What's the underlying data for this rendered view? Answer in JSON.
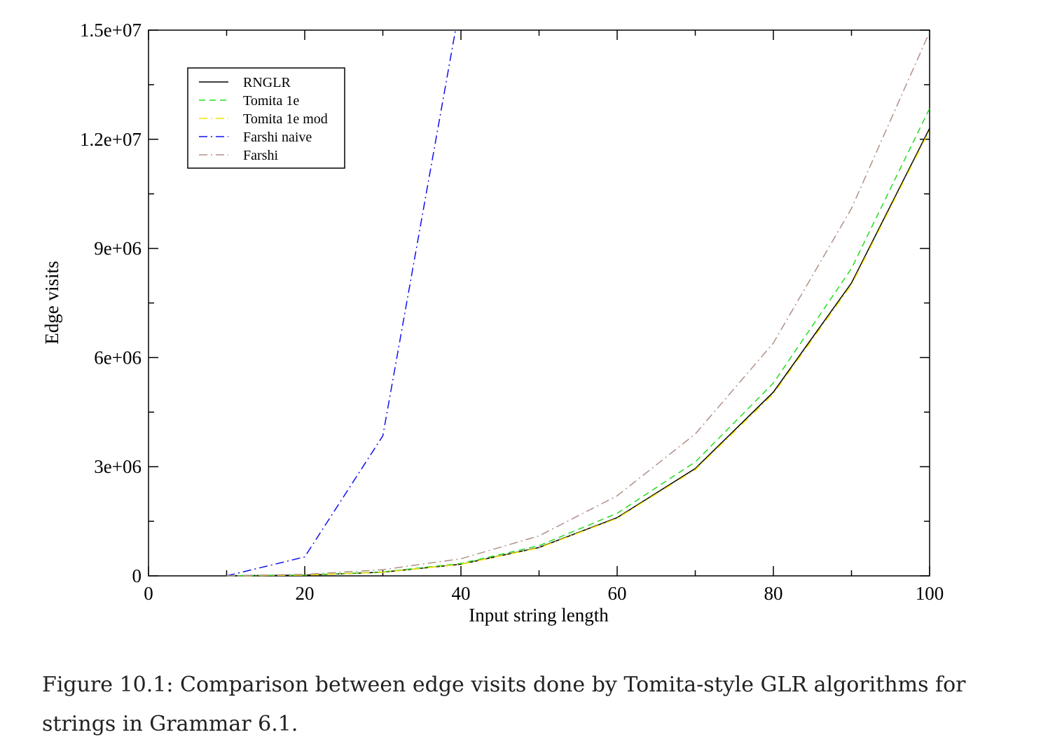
{
  "chart_data": {
    "type": "line",
    "xlabel": "Input string length",
    "ylabel": "Edge visits",
    "xlim": [
      0,
      100
    ],
    "ylim": [
      0,
      15000000
    ],
    "x_ticks": [
      0,
      20,
      40,
      60,
      80,
      100
    ],
    "x_tick_labels": [
      "0",
      "20",
      "40",
      "60",
      "80",
      "100"
    ],
    "y_ticks": [
      0,
      3000000,
      6000000,
      9000000,
      12000000,
      15000000
    ],
    "y_tick_labels": [
      "0",
      "3e+06",
      "6e+06",
      "9e+06",
      "1.2e+07",
      "1.5e+07"
    ],
    "grid": false,
    "legend_position": "top-left",
    "series": [
      {
        "name": "RNGLR",
        "color": "#000000",
        "dash": "solid",
        "x": [
          10,
          20,
          30,
          40,
          50,
          60,
          70,
          80,
          90,
          100
        ],
        "values": [
          1000,
          20000,
          100000,
          320000,
          780000,
          1600000,
          2950000,
          5050000,
          8050000,
          12300000
        ]
      },
      {
        "name": "Tomita 1e",
        "color": "#22dd22",
        "dash": "dashed",
        "x": [
          10,
          20,
          30,
          40,
          50,
          60,
          70,
          80,
          90,
          100
        ],
        "values": [
          1000,
          22000,
          110000,
          340000,
          830000,
          1720000,
          3130000,
          5300000,
          8450000,
          12850000
        ]
      },
      {
        "name": "Tomita 1e mod",
        "color": "#f5e400",
        "dash": "dashdot",
        "x": [
          10,
          20,
          30,
          40,
          50,
          60,
          70,
          80,
          90,
          100
        ],
        "values": [
          1000,
          20000,
          100000,
          320000,
          770000,
          1580000,
          2920000,
          5000000,
          8000000,
          12250000
        ]
      },
      {
        "name": "Farshi naive",
        "color": "#1010ee",
        "dash": "dashdot",
        "x": [
          10,
          20,
          30,
          39.3
        ],
        "values": [
          0,
          520000,
          3850000,
          15000000
        ]
      },
      {
        "name": "Farshi",
        "color": "#b09088",
        "dash": "dashdot",
        "x": [
          10,
          20,
          30,
          40,
          50,
          60,
          70,
          80,
          90,
          100
        ],
        "values": [
          2000,
          40000,
          170000,
          470000,
          1100000,
          2200000,
          3900000,
          6400000,
          10100000,
          14950000
        ]
      }
    ]
  },
  "caption": "Figure 10.1: Comparison between edge visits done by Tomita-style GLR algorithms for strings in Grammar 6.1."
}
